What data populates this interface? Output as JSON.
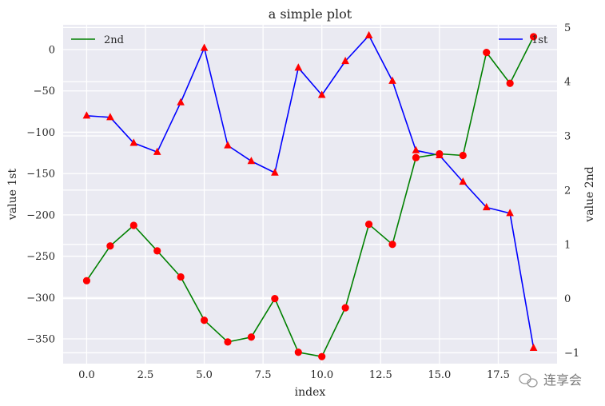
{
  "chart_data": {
    "type": "line",
    "title": "a simple plot",
    "xlabel": "index",
    "ylabel_left": "value 1st",
    "ylabel_right": "value 2nd",
    "xlim": [
      -1,
      20
    ],
    "ylim_left": [
      -380,
      30
    ],
    "ylim_right": [
      -1.2,
      5.05
    ],
    "xticks": [
      0,
      2.5,
      5,
      7.5,
      10,
      12.5,
      15,
      17.5
    ],
    "xtick_labels": [
      "0.0",
      "2.5",
      "5.0",
      "7.5",
      "10.0",
      "12.5",
      "15.0",
      "17.5"
    ],
    "yticks_left": [
      0,
      -50,
      -100,
      -150,
      -200,
      -250,
      -300,
      -350
    ],
    "ytick_labels_left": [
      "0",
      "−50",
      "−100",
      "−150",
      "−200",
      "−250",
      "−300",
      "−350"
    ],
    "yticks_right": [
      5,
      4,
      3,
      2,
      1,
      0,
      -1
    ],
    "ytick_labels_right": [
      "5",
      "4",
      "3",
      "2",
      "1",
      "0",
      "−1"
    ],
    "grid": true,
    "background": "#eaeaf2",
    "series": [
      {
        "name": "1st",
        "axis": "left",
        "color": "#0000ff",
        "marker": "triangle",
        "marker_color": "#ff0000",
        "x": [
          0,
          1,
          2,
          3,
          4,
          5,
          6,
          7,
          8,
          9,
          10,
          11,
          12,
          13,
          14,
          15,
          16,
          17,
          18,
          19
        ],
        "values": [
          -80,
          -82,
          -113,
          -124,
          -64,
          2,
          -116,
          -135,
          -149,
          -22,
          -55,
          -14,
          17,
          -38,
          -122,
          -128,
          -160,
          -191,
          -198,
          -361
        ]
      },
      {
        "name": "2nd",
        "axis": "right",
        "color": "#008000",
        "marker": "circle",
        "marker_color": "#ff0000",
        "x": [
          0,
          1,
          2,
          3,
          4,
          5,
          6,
          7,
          8,
          9,
          10,
          11,
          12,
          13,
          14,
          15,
          16,
          17,
          18,
          19
        ],
        "values": [
          0.33,
          0.97,
          1.35,
          0.88,
          0.4,
          -0.4,
          -0.8,
          -0.71,
          0.0,
          -0.99,
          -1.07,
          -0.17,
          1.37,
          1.0,
          2.6,
          2.67,
          2.64,
          4.54,
          3.97,
          4.83
        ]
      }
    ],
    "legends": [
      {
        "series": "2nd",
        "placement": "top-left"
      },
      {
        "series": "1st",
        "placement": "top-right"
      }
    ]
  },
  "watermark": {
    "text": "连享会"
  }
}
